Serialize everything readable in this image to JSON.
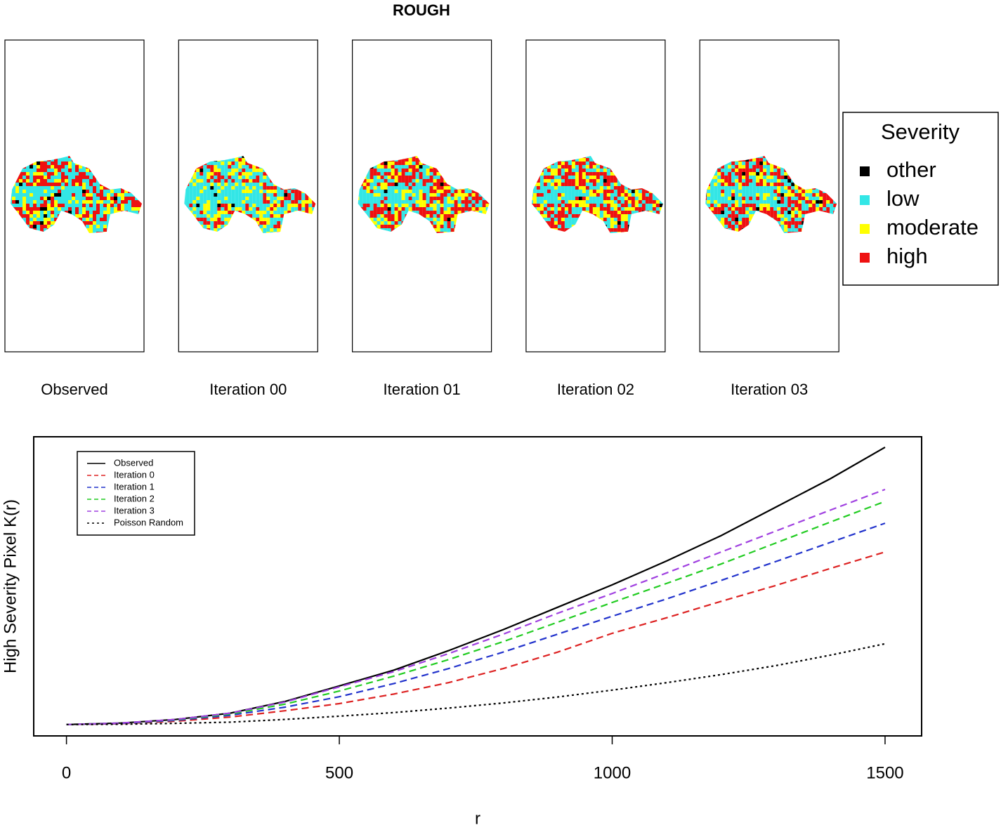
{
  "title": "ROUGH",
  "panels": [
    "Observed",
    "Iteration 00",
    "Iteration 01",
    "Iteration 02",
    "Iteration 03"
  ],
  "severity_legend": {
    "title": "Severity",
    "items": [
      {
        "name": "other",
        "color": "#000000"
      },
      {
        "name": "low",
        "color": "#33e6e6"
      },
      {
        "name": "moderate",
        "color": "#ffff00"
      },
      {
        "name": "high",
        "color": "#ee1111"
      }
    ]
  },
  "chart_data": {
    "type": "line",
    "ylabel": "High Severity Pixel K(r)",
    "xlabel": "r",
    "x": [
      0,
      100,
      200,
      300,
      400,
      500,
      600,
      700,
      800,
      900,
      1000,
      1100,
      1200,
      1300,
      1400,
      1500
    ],
    "xlim": [
      -60,
      1567
    ],
    "xticks": [
      0,
      500,
      1000,
      1500
    ],
    "ylim": [
      0,
      100
    ],
    "legend": "top-left",
    "series": [
      {
        "name": "Observed",
        "color": "#000000",
        "dash": "solid",
        "values": [
          3.8,
          4.3,
          5.5,
          7.6,
          11.5,
          16.7,
          22,
          28.5,
          35.5,
          43,
          50.5,
          58.5,
          67,
          76.5,
          86,
          96.5
        ]
      },
      {
        "name": "Iteration 0",
        "color": "#dd2222",
        "dash": "dashed",
        "values": [
          3.8,
          4.1,
          4.9,
          6.3,
          8.4,
          10.8,
          14,
          17.8,
          22.5,
          28,
          34.3,
          39.5,
          45,
          50.3,
          56,
          61.5
        ]
      },
      {
        "name": "Iteration 1",
        "color": "#2233cc",
        "dash": "dashed",
        "values": [
          3.8,
          4.2,
          5.2,
          6.9,
          9.6,
          13.1,
          17.5,
          22.5,
          28,
          34,
          40,
          45.8,
          52,
          58.3,
          64.7,
          71.1
        ]
      },
      {
        "name": "Iteration 2",
        "color": "#22cc22",
        "dash": "dashed",
        "values": [
          3.8,
          4.3,
          5.4,
          7.3,
          10.6,
          15,
          20,
          25.5,
          31.5,
          38,
          44.6,
          51,
          57.5,
          64.5,
          71.5,
          78.4
        ]
      },
      {
        "name": "Iteration 3",
        "color": "#a040e0",
        "dash": "dashed",
        "values": [
          3.8,
          4.3,
          5.5,
          7.6,
          11.3,
          16.4,
          21.5,
          27.5,
          34,
          41,
          47.6,
          54.5,
          61.5,
          68.5,
          75.5,
          82.4
        ]
      },
      {
        "name": "Poisson Random",
        "color": "#000000",
        "dash": "dotted",
        "values": [
          3.8,
          3.9,
          4.2,
          4.6,
          5.5,
          6.6,
          7.8,
          9.3,
          11,
          13,
          15.3,
          17.8,
          20.5,
          23.5,
          27,
          30.8
        ]
      }
    ]
  }
}
